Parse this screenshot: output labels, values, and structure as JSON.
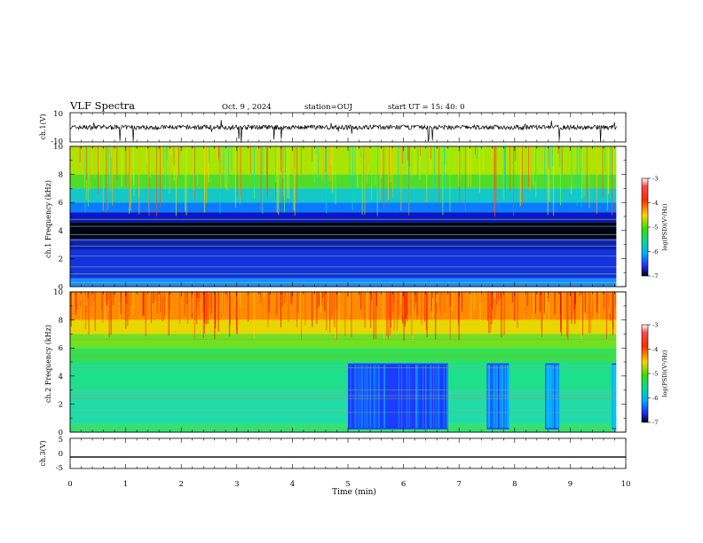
{
  "header": {
    "title": "VLF Spectra",
    "date": "Oct. 9  , 2024",
    "station": "station=OUJ",
    "start": "start  UT =   15: 40: 0"
  },
  "chart_data": [
    {
      "type": "line",
      "panel": "ch1-waveform",
      "ylabel": "ch.1(V)",
      "ylim": [
        -10,
        10
      ],
      "y_ticks": [
        "10",
        "-10"
      ],
      "baseline_value": 0,
      "xlim": [
        0,
        10
      ],
      "data_end_min": 9.83
    },
    {
      "type": "heatmap",
      "panel": "ch1-spectrogram",
      "ylabel": "ch.1  Frequency (kHz)",
      "ylim": [
        0,
        10
      ],
      "y_ticks": [
        "0",
        "2",
        "4",
        "6",
        "8",
        "10"
      ],
      "xlim": [
        0,
        10
      ],
      "colorbar": {
        "label": "log(PSD)(V²/Hz)",
        "range": [
          -7,
          -3
        ],
        "ticks": [
          "-3",
          "-4",
          "-5",
          "-6",
          "-7"
        ]
      }
    },
    {
      "type": "heatmap",
      "panel": "ch2-spectrogram",
      "ylabel": "ch.2  Frequency (kHz)",
      "ylim": [
        0,
        10
      ],
      "y_ticks": [
        "0",
        "2",
        "4",
        "6",
        "8",
        "10"
      ],
      "xlim": [
        0,
        10
      ],
      "low_noise_intervals_min": [
        [
          5.0,
          6.8
        ],
        [
          7.5,
          7.9
        ],
        [
          8.55,
          8.8
        ],
        [
          9.75,
          9.83
        ]
      ],
      "colorbar": {
        "label": "log(PSD)(V²/Hz)",
        "range": [
          -7,
          -3
        ],
        "ticks": [
          "-3",
          "-4",
          "-5",
          "-6",
          "-7"
        ]
      }
    },
    {
      "type": "line",
      "panel": "ch3-waveform",
      "ylabel": "ch.3(V)",
      "ylim": [
        -5,
        5
      ],
      "y_ticks": [
        "5",
        "0",
        "-5"
      ],
      "constant_value": -1.2,
      "xlim": [
        0,
        10
      ]
    }
  ],
  "x_axis": {
    "label": "Time  (min)",
    "ticks": [
      "0",
      "1",
      "2",
      "3",
      "4",
      "5",
      "6",
      "7",
      "8",
      "9",
      "10"
    ]
  },
  "colors": {
    "black": "#000000",
    "white": "#ffffff"
  }
}
